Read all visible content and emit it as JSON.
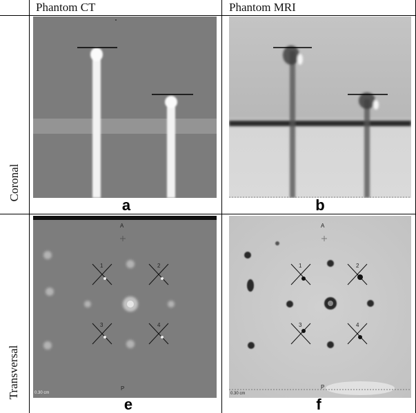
{
  "columns": {
    "ct": "Phantom CT",
    "mri": "Phantom MRI"
  },
  "rows": {
    "coronal": "Coronal",
    "transversal": "Transversal"
  },
  "panels": {
    "a": {
      "caption": "a"
    },
    "b": {
      "caption": "b"
    },
    "e": {
      "caption": "e",
      "top_marker": "A",
      "bottom_marker": "P",
      "scale": "0.30 cm",
      "numbers": [
        "1",
        "2",
        "3",
        "4"
      ]
    },
    "f": {
      "caption": "f",
      "top_marker": "A",
      "bottom_marker": "P",
      "scale": "0.30 cm",
      "numbers": [
        "1",
        "2",
        "3",
        "4"
      ]
    }
  },
  "colors": {
    "ct_background": "#7b7b7b",
    "mri_background": "#cfcfcf",
    "grid_line": "#000000"
  }
}
